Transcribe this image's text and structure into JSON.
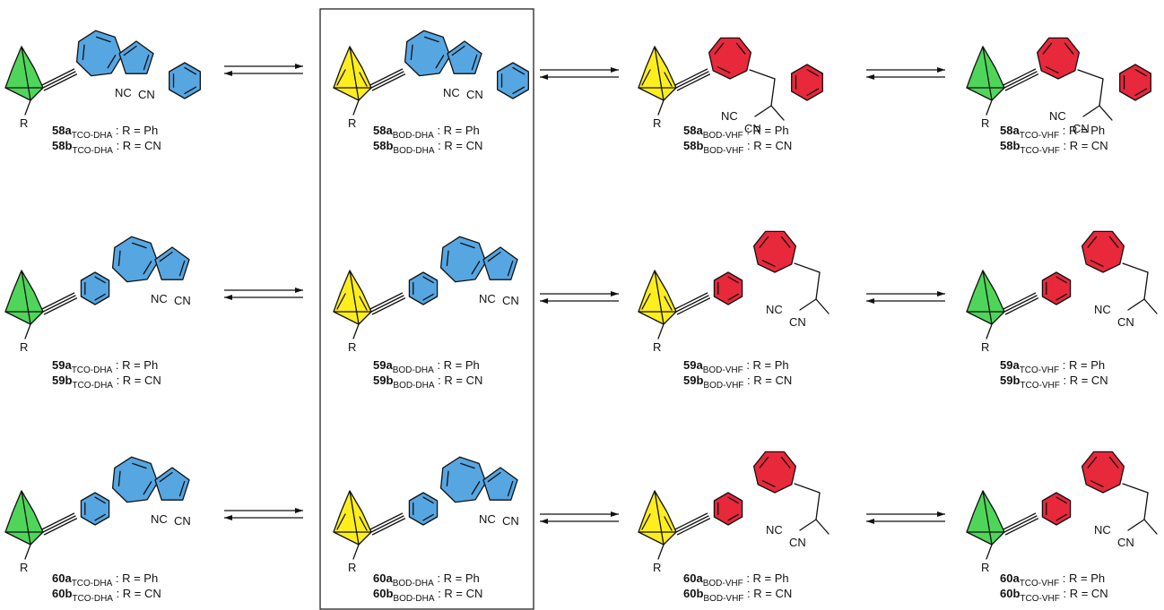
{
  "colors": {
    "dha_ring": "#56a6e2",
    "vhf_ring": "#e8283b",
    "tco_cage": "#4fd65a",
    "bod_cage": "#ffee1e",
    "line": "#111111",
    "frame": "#222222"
  },
  "atoms": {
    "nc": "NC",
    "cn": "CN",
    "r": "R"
  },
  "labels": {
    "58a_tco_dha": {
      "id": "58a",
      "sub": "TCO-DHA",
      "rest": " : R = Ph"
    },
    "58b_tco_dha": {
      "id": "58b",
      "sub": "TCO-DHA",
      "rest": " : R = CN"
    },
    "58a_bod_dha": {
      "id": "58a",
      "sub": "BOD-DHA",
      "rest": " : R = Ph"
    },
    "58b_bod_dha": {
      "id": "58b",
      "sub": "BOD-DHA",
      "rest": " : R = CN"
    },
    "58a_bod_vhf": {
      "id": "58a",
      "sub": "BOD-VHF",
      "rest": " : R = Ph"
    },
    "58b_bod_vhf": {
      "id": "58b",
      "sub": "BOD-VHF",
      "rest": " : R = CN"
    },
    "58a_tco_vhf": {
      "id": "58a",
      "sub": "TCO-VHF",
      "rest": " : R = Ph"
    },
    "58b_tco_vhf": {
      "id": "58b",
      "sub": "TCO-VHF",
      "rest": " : R = CN"
    },
    "59a_tco_dha": {
      "id": "59a",
      "sub": "TCO-DHA",
      "rest": " : R = Ph"
    },
    "59b_tco_dha": {
      "id": "59b",
      "sub": "TCO-DHA",
      "rest": " : R = CN"
    },
    "59a_bod_dha": {
      "id": "59a",
      "sub": "BOD-DHA",
      "rest": " : R = Ph"
    },
    "59b_bod_dha": {
      "id": "59b",
      "sub": "BOD-DHA",
      "rest": " : R = CN"
    },
    "59a_bod_vhf": {
      "id": "59a",
      "sub": "BOD-VHF",
      "rest": " : R = Ph"
    },
    "59b_bod_vhf": {
      "id": "59b",
      "sub": "BOD-VHF",
      "rest": " : R = CN"
    },
    "59a_tco_vhf": {
      "id": "59a",
      "sub": "TCO-VHF",
      "rest": " : R = Ph"
    },
    "59b_tco_vhf": {
      "id": "59b",
      "sub": "TCO-VHF",
      "rest": " : R = CN"
    },
    "60a_tco_dha": {
      "id": "60a",
      "sub": "TCO-DHA",
      "rest": " : R = Ph"
    },
    "60b_tco_dha": {
      "id": "60b",
      "sub": "TCO-DHA",
      "rest": " : R = CN"
    },
    "60a_bod_dha": {
      "id": "60a",
      "sub": "BOD-DHA",
      "rest": " : R = Ph"
    },
    "60b_bod_dha": {
      "id": "60b",
      "sub": "BOD-DHA",
      "rest": " : R = CN"
    },
    "60a_bod_vhf": {
      "id": "60a",
      "sub": "BOD-VHF",
      "rest": " : R = Ph"
    },
    "60b_bod_vhf": {
      "id": "60b",
      "sub": "BOD-VHF",
      "rest": " : R = CN"
    },
    "60a_tco_vhf": {
      "id": "60a",
      "sub": "TCO-VHF",
      "rest": " : R = Ph"
    },
    "60b_tco_vhf": {
      "id": "60b",
      "sub": "TCO-VHF",
      "rest": " : R = CN"
    }
  }
}
